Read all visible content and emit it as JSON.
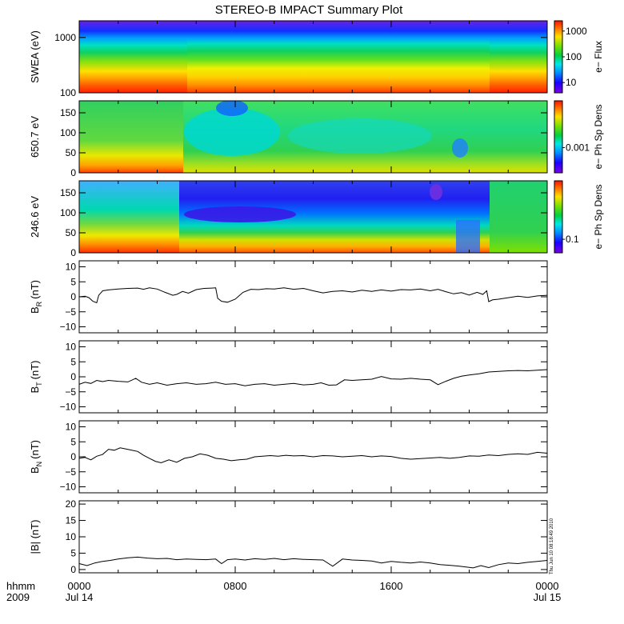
{
  "title": "STEREO-B IMPACT Summary Plot",
  "footer": {
    "time_label": "hhmm",
    "year": "2009",
    "x_ticks": [
      {
        "t": 0,
        "label": "0000",
        "sub": "Jul 14"
      },
      {
        "t": 8,
        "label": "0800",
        "sub": ""
      },
      {
        "t": 16,
        "label": "1600",
        "sub": ""
      },
      {
        "t": 24,
        "label": "0000",
        "sub": "Jul 15"
      }
    ]
  },
  "timestamp": "Thu Jun 10 08:18:49 2010",
  "chart_data": [
    {
      "type": "heatmap",
      "ylabel": "SWEA (eV)",
      "xlim": [
        0,
        24
      ],
      "ylim": [
        100,
        2000
      ],
      "yscale": "log",
      "yticks": [
        {
          "v": 1000,
          "label": "1000"
        },
        {
          "v": 100,
          "label": "100"
        }
      ],
      "colorbar": {
        "label": "e− Flux",
        "scale": "log",
        "range": [
          4,
          2500
        ],
        "ticks": [
          {
            "v": 1000,
            "label": "1000"
          },
          {
            "v": 100,
            "label": "100"
          },
          {
            "v": 10,
            "label": "10"
          }
        ]
      },
      "description_values": {
        "x_hours": [
          0,
          2,
          4,
          6,
          8,
          10,
          12,
          14,
          16,
          18,
          20,
          21.5,
          22,
          24
        ],
        "flux_at_100eV": [
          2000,
          2000,
          1800,
          900,
          800,
          800,
          800,
          800,
          850,
          800,
          800,
          900,
          1800,
          2000
        ]
      }
    },
    {
      "type": "heatmap",
      "ylabel": "650.7 eV",
      "xlim": [
        0,
        24
      ],
      "ylim": [
        0,
        180
      ],
      "yticks": [
        {
          "v": 150,
          "label": "150"
        },
        {
          "v": 100,
          "label": "100"
        },
        {
          "v": 50,
          "label": "50"
        },
        {
          "v": 0,
          "label": "0"
        }
      ],
      "colorbar": {
        "label": "e− Ph Sp Dens",
        "scale": "log",
        "range": [
          0.0002,
          0.02
        ],
        "ticks": [
          {
            "v": 0.001,
            "label": "0.001"
          }
        ]
      }
    },
    {
      "type": "heatmap",
      "ylabel": "246.6 eV",
      "xlim": [
        0,
        24
      ],
      "ylim": [
        0,
        180
      ],
      "yticks": [
        {
          "v": 150,
          "label": "150"
        },
        {
          "v": 100,
          "label": "100"
        },
        {
          "v": 50,
          "label": "50"
        },
        {
          "v": 0,
          "label": "0"
        }
      ],
      "colorbar": {
        "label": "e− Ph Sp Dens",
        "scale": "log",
        "range": [
          0.05,
          2
        ],
        "ticks": [
          {
            "v": 0.1,
            "label": "0.1"
          }
        ]
      }
    },
    {
      "type": "line",
      "ylabel": "B",
      "ylabel_sub": "R",
      "ylabel_unit": "(nT)",
      "xlim": [
        0,
        24
      ],
      "ylim": [
        -12,
        12
      ],
      "yticks": [
        {
          "v": 10,
          "label": "10"
        },
        {
          "v": 5,
          "label": "5"
        },
        {
          "v": 0,
          "label": "0"
        },
        {
          "v": -5,
          "label": "−5"
        },
        {
          "v": -10,
          "label": "−10"
        }
      ],
      "x": [
        0,
        0.3,
        0.5,
        0.7,
        0.9,
        1.0,
        1.2,
        1.5,
        2.0,
        2.5,
        3.0,
        3.3,
        3.6,
        4.0,
        4.4,
        4.8,
        5.0,
        5.3,
        5.6,
        6.0,
        6.4,
        6.8,
        7.0,
        7.1,
        7.3,
        7.6,
        8.0,
        8.4,
        8.8,
        9.2,
        9.6,
        10.0,
        10.5,
        11.0,
        11.5,
        12.0,
        12.5,
        13.0,
        13.5,
        14.0,
        14.5,
        15.0,
        15.5,
        16.0,
        16.5,
        17.0,
        17.5,
        18.0,
        18.4,
        18.8,
        19.2,
        19.6,
        20.0,
        20.4,
        20.7,
        20.9,
        21.0,
        21.2,
        21.5,
        22.0,
        22.5,
        23.0,
        23.5,
        24.0
      ],
      "values": [
        0,
        0.2,
        -0.3,
        -1.5,
        -2.0,
        0.5,
        2.0,
        2.3,
        2.6,
        2.8,
        2.9,
        2.5,
        3.0,
        2.6,
        1.5,
        0.5,
        0.8,
        1.8,
        1.2,
        2.4,
        2.8,
        2.9,
        3.0,
        -0.5,
        -1.5,
        -1.8,
        -0.8,
        1.5,
        2.5,
        2.4,
        2.7,
        2.6,
        3.0,
        2.5,
        2.8,
        2.0,
        1.3,
        1.8,
        2.0,
        1.6,
        2.2,
        1.8,
        2.3,
        1.9,
        2.4,
        2.3,
        2.6,
        2.0,
        2.5,
        1.7,
        1.0,
        1.4,
        0.6,
        1.5,
        0.8,
        2.0,
        -1.6,
        -1.0,
        -0.8,
        -0.3,
        0.2,
        -0.2,
        0.3,
        0.5
      ]
    },
    {
      "type": "line",
      "ylabel": "B",
      "ylabel_sub": "T",
      "ylabel_unit": "(nT)",
      "xlim": [
        0,
        24
      ],
      "ylim": [
        -12,
        12
      ],
      "yticks": [
        {
          "v": 10,
          "label": "10"
        },
        {
          "v": 5,
          "label": "5"
        },
        {
          "v": 0,
          "label": "0"
        },
        {
          "v": -5,
          "label": "−5"
        },
        {
          "v": -10,
          "label": "−10"
        }
      ],
      "x": [
        0,
        0.3,
        0.6,
        0.9,
        1.2,
        1.5,
        2.0,
        2.5,
        2.9,
        3.2,
        3.6,
        4.0,
        4.5,
        5.0,
        5.5,
        6.0,
        6.5,
        7.0,
        7.5,
        8.0,
        8.5,
        9.0,
        9.5,
        10.0,
        10.5,
        11.0,
        11.5,
        12.0,
        12.4,
        12.8,
        13.2,
        13.6,
        14.0,
        14.5,
        15.0,
        15.5,
        16.0,
        16.5,
        17.0,
        17.5,
        18.0,
        18.4,
        18.8,
        19.2,
        19.6,
        20.0,
        20.5,
        21.0,
        21.5,
        22.0,
        22.5,
        23.0,
        23.5,
        24.0
      ],
      "values": [
        -2.5,
        -1.8,
        -2.2,
        -1.2,
        -1.6,
        -1.2,
        -1.5,
        -1.7,
        -0.5,
        -1.8,
        -2.5,
        -2.0,
        -2.8,
        -2.3,
        -2.0,
        -2.5,
        -2.3,
        -1.8,
        -2.5,
        -2.3,
        -3.0,
        -2.5,
        -2.3,
        -2.8,
        -2.5,
        -2.2,
        -2.7,
        -2.5,
        -2.0,
        -2.8,
        -2.7,
        -1.0,
        -1.2,
        -1.0,
        -0.8,
        0.1,
        -0.7,
        -0.8,
        -0.5,
        -0.8,
        -1.0,
        -2.6,
        -1.5,
        -0.5,
        0.2,
        0.6,
        1.0,
        1.6,
        1.8,
        2.0,
        2.1,
        2.0,
        2.2,
        2.4
      ]
    },
    {
      "type": "line",
      "ylabel": "B",
      "ylabel_sub": "N",
      "ylabel_unit": "(nT)",
      "xlim": [
        0,
        24
      ],
      "ylim": [
        -12,
        12
      ],
      "yticks": [
        {
          "v": 10,
          "label": "10"
        },
        {
          "v": 5,
          "label": "5"
        },
        {
          "v": 0,
          "label": "0"
        },
        {
          "v": -5,
          "label": "−5"
        },
        {
          "v": -10,
          "label": "−10"
        }
      ],
      "x": [
        0,
        0.3,
        0.6,
        0.9,
        1.2,
        1.5,
        1.8,
        2.1,
        2.4,
        2.7,
        3.0,
        3.3,
        3.6,
        3.9,
        4.2,
        4.6,
        5.0,
        5.4,
        5.8,
        6.2,
        6.6,
        7.0,
        7.4,
        7.8,
        8.2,
        8.6,
        9.0,
        9.4,
        9.8,
        10.2,
        10.6,
        11.0,
        11.5,
        12.0,
        12.5,
        13.0,
        13.5,
        14.0,
        14.5,
        15.0,
        15.5,
        16.0,
        16.5,
        17.0,
        17.5,
        18.0,
        18.5,
        19.0,
        19.5,
        20.0,
        20.5,
        21.0,
        21.5,
        22.0,
        22.5,
        23.0,
        23.5,
        24.0
      ],
      "values": [
        -0.5,
        -0.2,
        -1.0,
        0.2,
        0.8,
        2.5,
        2.2,
        3.0,
        2.6,
        2.2,
        1.8,
        0.5,
        -0.5,
        -1.5,
        -2.0,
        -1.0,
        -1.8,
        -0.5,
        0.0,
        1.0,
        0.5,
        -0.5,
        -0.8,
        -1.3,
        -1.0,
        -0.8,
        0.0,
        0.2,
        0.4,
        0.2,
        0.5,
        0.3,
        0.4,
        0.0,
        0.4,
        0.3,
        0.0,
        0.2,
        0.4,
        0.0,
        0.3,
        0.1,
        -0.5,
        -0.8,
        -0.6,
        -0.4,
        -0.2,
        -0.5,
        -0.2,
        0.3,
        0.2,
        0.6,
        0.4,
        0.8,
        1.0,
        0.8,
        1.5,
        1.2
      ]
    },
    {
      "type": "line",
      "ylabel": "|B| (nT)",
      "xlim": [
        0,
        24
      ],
      "ylim": [
        -1,
        21
      ],
      "yticks": [
        {
          "v": 20,
          "label": "20"
        },
        {
          "v": 15,
          "label": "15"
        },
        {
          "v": 10,
          "label": "10"
        },
        {
          "v": 5,
          "label": "5"
        },
        {
          "v": 0,
          "label": "0"
        }
      ],
      "x": [
        0,
        0.4,
        0.8,
        1.2,
        1.6,
        2.0,
        2.5,
        3.0,
        3.5,
        4.0,
        4.5,
        5.0,
        5.5,
        6.0,
        6.5,
        7.0,
        7.3,
        7.6,
        8.0,
        8.5,
        9.0,
        9.5,
        10.0,
        10.5,
        11.0,
        11.5,
        12.0,
        12.5,
        13.0,
        13.5,
        14.0,
        14.5,
        15.0,
        15.5,
        16.0,
        16.5,
        17.0,
        17.5,
        18.0,
        18.5,
        19.0,
        19.5,
        19.8,
        20.2,
        20.6,
        21.0,
        21.5,
        22.0,
        22.5,
        23.0,
        23.5,
        24.0
      ],
      "values": [
        1.8,
        1.2,
        2.0,
        2.5,
        2.8,
        3.2,
        3.6,
        3.8,
        3.5,
        3.3,
        3.4,
        3.0,
        3.2,
        3.1,
        3.0,
        3.2,
        1.8,
        3.0,
        3.2,
        2.9,
        3.3,
        3.1,
        3.4,
        3.0,
        3.3,
        3.1,
        3.0,
        2.9,
        1.0,
        3.2,
        2.9,
        2.8,
        2.6,
        2.0,
        2.5,
        2.2,
        2.0,
        2.3,
        2.0,
        1.5,
        1.3,
        1.0,
        0.8,
        0.5,
        1.2,
        0.6,
        1.5,
        2.0,
        1.8,
        2.2,
        2.5,
        2.8
      ]
    }
  ]
}
